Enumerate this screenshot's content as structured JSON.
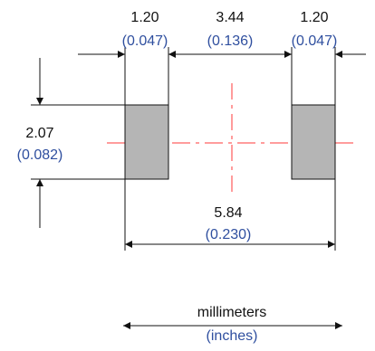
{
  "dimensions": {
    "pad_width_left": {
      "mm": "1.20",
      "inch": "(0.047)"
    },
    "pad_gap": {
      "mm": "3.44",
      "inch": "(0.136)"
    },
    "pad_width_right": {
      "mm": "1.20",
      "inch": "(0.047)"
    },
    "pad_height": {
      "mm": "2.07",
      "inch": "(0.082)"
    },
    "overall_length": {
      "mm": "5.84",
      "inch": "(0.230)"
    }
  },
  "legend": {
    "primary": "millimeters",
    "secondary": "(inches)"
  },
  "colors": {
    "pad_fill": "#b5b5b5",
    "centerline": "#ff3a3a",
    "inch_text": "#2f4f9f",
    "mm_text": "#111111"
  }
}
